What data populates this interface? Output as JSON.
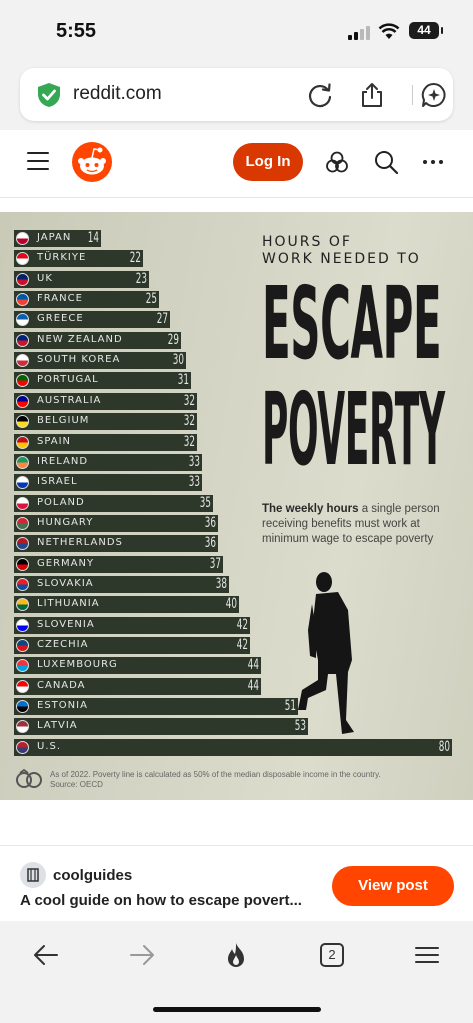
{
  "status_bar": {
    "time": "5:55",
    "battery": "44"
  },
  "browser": {
    "url": "reddit.com",
    "tab_count": "2"
  },
  "header": {
    "login_label": "Log In"
  },
  "infographic": {
    "title_small_1": "HOURS OF",
    "title_small_2": "WORK NEEDED TO",
    "title_big_1": "ESCAPE",
    "title_big_2": "POVERTY",
    "subtitle_bold": "The weekly hours",
    "subtitle_rest": " a single person receiving benefits must work at minimum wage to escape poverty",
    "footnote_1": "As of 2022. Poverty line is calculated as 50% of the median disposable income in the country.",
    "footnote_2": "Source: OECD"
  },
  "chart_data": {
    "type": "bar",
    "categories": [
      "JAPAN",
      "TÜRKIYE",
      "UK",
      "FRANCE",
      "GREECE",
      "NEW ZEALAND",
      "SOUTH KOREA",
      "PORTUGAL",
      "AUSTRALIA",
      "BELGIUM",
      "SPAIN",
      "IRELAND",
      "ISRAEL",
      "POLAND",
      "HUNGARY",
      "NETHERLANDS",
      "GERMANY",
      "SLOVAKIA",
      "LITHUANIA",
      "SLOVENIA",
      "CZECHIA",
      "LUXEMBOURG",
      "CANADA",
      "ESTONIA",
      "LATVIA",
      "U.S."
    ],
    "values": [
      14,
      22,
      23,
      25,
      27,
      29,
      30,
      31,
      32,
      32,
      32,
      33,
      33,
      35,
      36,
      36,
      37,
      38,
      40,
      42,
      42,
      44,
      44,
      51,
      53,
      80
    ],
    "title": "HOURS OF WORK NEEDED TO ESCAPE POVERTY",
    "flag_colors": [
      [
        "#ffffff",
        "#bc002d"
      ],
      [
        "#e30a17",
        "#ffffff"
      ],
      [
        "#012169",
        "#c8102e"
      ],
      [
        "#0055a4",
        "#ef4135"
      ],
      [
        "#0d5eaf",
        "#ffffff"
      ],
      [
        "#00247d",
        "#cc142b"
      ],
      [
        "#ffffff",
        "#cd2e3a"
      ],
      [
        "#006600",
        "#ff0000"
      ],
      [
        "#00008b",
        "#ff0000"
      ],
      [
        "#000000",
        "#fdda24"
      ],
      [
        "#c60b1e",
        "#ffc400"
      ],
      [
        "#169b62",
        "#ff883e"
      ],
      [
        "#ffffff",
        "#0038b8"
      ],
      [
        "#ffffff",
        "#dc143c"
      ],
      [
        "#ce2939",
        "#477050"
      ],
      [
        "#ae1c28",
        "#21468b"
      ],
      [
        "#000000",
        "#dd0000"
      ],
      [
        "#ee1c25",
        "#0b4ea2"
      ],
      [
        "#fdb913",
        "#006a44"
      ],
      [
        "#ffffff",
        "#0000ff"
      ],
      [
        "#11457e",
        "#d7141a"
      ],
      [
        "#ef3340",
        "#00a3e0"
      ],
      [
        "#ff0000",
        "#ffffff"
      ],
      [
        "#0072ce",
        "#000000"
      ],
      [
        "#9e3039",
        "#ffffff"
      ],
      [
        "#b22234",
        "#3c3b6e"
      ]
    ]
  },
  "post": {
    "subreddit": "coolguides",
    "title": "A cool guide on how to escape povert...",
    "view_label": "View post"
  }
}
